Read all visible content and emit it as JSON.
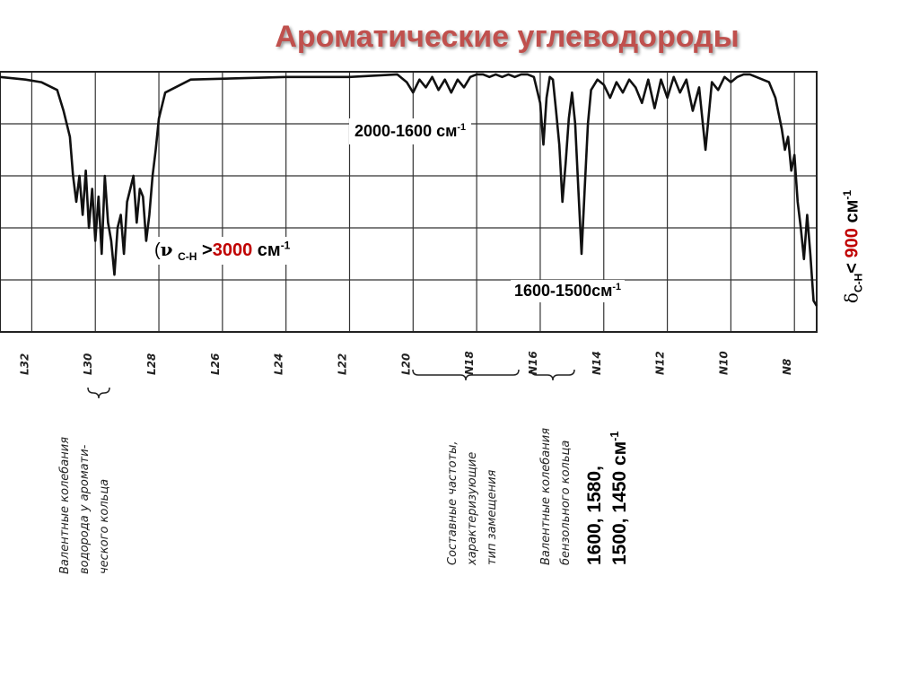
{
  "slide": {
    "title": "Ароматические углеводороды",
    "labels": {
      "range_2000_1600": "2000-1600 см",
      "range_2000_1600_sup": "-1",
      "range_1600_1500": "1600-1500см",
      "range_1600_1500_sup": "-1",
      "nu_paren": "(",
      "nu_symbol": "ν",
      "nu_sub": "C-H",
      "nu_gt": " >",
      "nu_value": "3000",
      "nu_unit": " см",
      "nu_sup": "-1",
      "delta_symbol": "δ",
      "delta_sub": "C-H",
      "delta_lt": "< ",
      "delta_value": "900",
      "delta_unit": " см",
      "delta_sup": "-1",
      "freq_line1": "1600, 1580,",
      "freq_line2": "1500, 1450 см",
      "freq_sup": "-1"
    },
    "notes": {
      "ch_stretch": [
        "Валентные колебания",
        "водорода у аромати-",
        "ческого кольца"
      ],
      "overtones": [
        "Составные частоты,",
        "характеризующие",
        "тип замещения"
      ],
      "ring_stretch": [
        "Валентные колебания",
        "бензольного кольца"
      ]
    },
    "colors": {
      "title": "#c0504d",
      "accent": "#c00000",
      "ink": "#111111"
    }
  },
  "chart_data": {
    "type": "line",
    "title": "",
    "xlabel": "",
    "ylabel": "",
    "x_unit": "μm",
    "tick_labels": [
      "L32",
      "L30",
      "L28",
      "L26",
      "L24",
      "L22",
      "L20",
      "N18",
      "N16",
      "N14",
      "N12",
      "N10",
      "N8"
    ],
    "tick_values": [
      3.2,
      3.0,
      2.8,
      2.6,
      2.4,
      2.2,
      2.0,
      1.8,
      1.6,
      1.4,
      1.2,
      1.0,
      0.8
    ],
    "xlim": [
      3.3,
      0.73
    ],
    "ylim": [
      0,
      100
    ],
    "grid": true,
    "series": [
      {
        "x": [
          3.3,
          3.22,
          3.17,
          3.12,
          3.1,
          3.08,
          3.07,
          3.06,
          3.05,
          3.04,
          3.03,
          3.02,
          3.01,
          3.0,
          2.99,
          2.98,
          2.97,
          2.96,
          2.95,
          2.94,
          2.93,
          2.92,
          2.91,
          2.9,
          2.89,
          2.88,
          2.87,
          2.86,
          2.85,
          2.84,
          2.83,
          2.82,
          2.81,
          2.8,
          2.78,
          2.7,
          2.4,
          2.2,
          2.05,
          2.02,
          2.0,
          1.98,
          1.96,
          1.94,
          1.92,
          1.9,
          1.88,
          1.86,
          1.84,
          1.82,
          1.8,
          1.78,
          1.76,
          1.74,
          1.72,
          1.7,
          1.68,
          1.66,
          1.64,
          1.62,
          1.6,
          1.59,
          1.58,
          1.57,
          1.56,
          1.55,
          1.54,
          1.53,
          1.52,
          1.51,
          1.5,
          1.49,
          1.48,
          1.47,
          1.46,
          1.45,
          1.44,
          1.42,
          1.4,
          1.38,
          1.36,
          1.34,
          1.32,
          1.3,
          1.28,
          1.26,
          1.24,
          1.22,
          1.2,
          1.18,
          1.16,
          1.14,
          1.12,
          1.1,
          1.08,
          1.06,
          1.04,
          1.02,
          1.0,
          0.98,
          0.96,
          0.94,
          0.92,
          0.9,
          0.88,
          0.86,
          0.84,
          0.83,
          0.82,
          0.81,
          0.8,
          0.79,
          0.78,
          0.77,
          0.76,
          0.75,
          0.74,
          0.73
        ],
        "y": [
          98,
          97,
          96,
          93,
          85,
          75,
          60,
          50,
          60,
          45,
          62,
          40,
          55,
          35,
          52,
          30,
          60,
          42,
          35,
          22,
          40,
          45,
          30,
          50,
          55,
          60,
          42,
          55,
          52,
          35,
          45,
          60,
          70,
          82,
          92,
          97,
          98,
          98,
          99,
          96,
          92,
          97,
          94,
          98,
          93,
          97,
          92,
          97,
          94,
          98,
          99,
          99,
          98,
          99,
          98,
          99,
          98,
          99,
          99,
          98,
          88,
          72,
          90,
          98,
          97,
          85,
          72,
          50,
          65,
          82,
          92,
          80,
          55,
          30,
          55,
          80,
          93,
          97,
          95,
          90,
          96,
          92,
          97,
          94,
          88,
          97,
          86,
          97,
          90,
          98,
          92,
          97,
          85,
          94,
          70,
          96,
          93,
          98,
          96,
          98,
          99,
          99,
          98,
          97,
          96,
          90,
          78,
          70,
          75,
          62,
          68,
          50,
          40,
          28,
          45,
          30,
          12,
          10
        ]
      }
    ]
  }
}
